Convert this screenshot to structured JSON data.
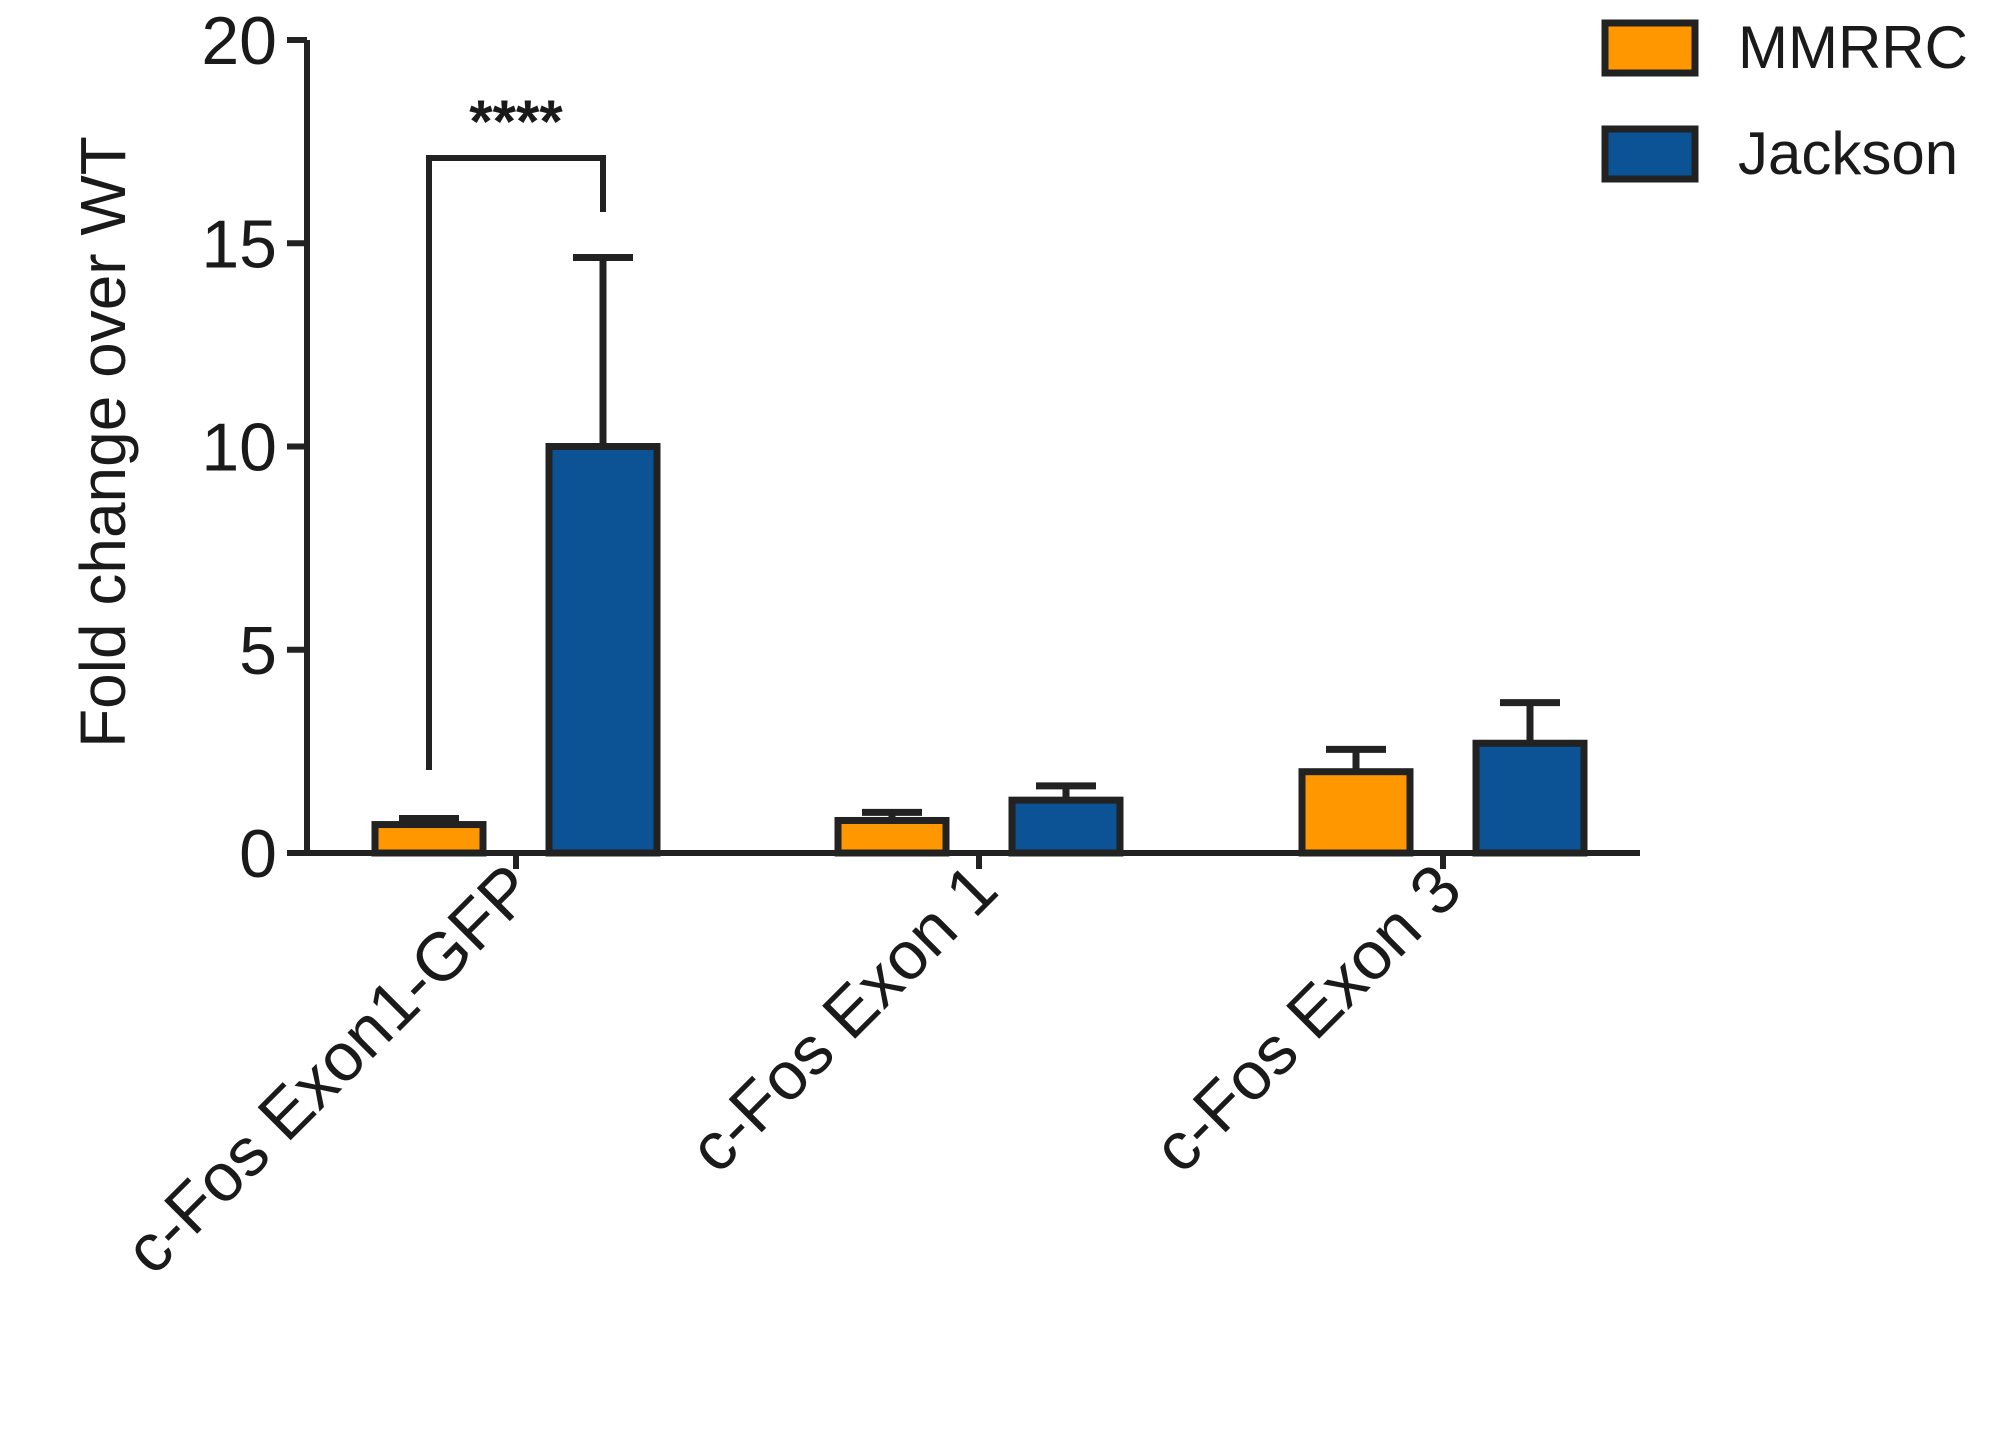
{
  "chart_data": {
    "type": "bar",
    "ylabel": "Fold change over WT",
    "ylim": [
      0,
      20
    ],
    "yticks": [
      0,
      5,
      10,
      15,
      20
    ],
    "categories": [
      "c-Fos Exon1-GFP",
      "c-Fos Exon 1",
      "c-Fos Exon 3"
    ],
    "series": [
      {
        "name": "MMRRC",
        "color": "#FF9800",
        "values": [
          0.7,
          0.8,
          2.0
        ],
        "errors": [
          0.15,
          0.2,
          0.55
        ]
      },
      {
        "name": "Jackson",
        "color": "#0B5394",
        "values": [
          10.0,
          1.3,
          2.7
        ],
        "errors": [
          4.65,
          0.35,
          1.0
        ]
      }
    ],
    "significance": [
      {
        "category": 0,
        "label": "****"
      }
    ],
    "legend": {
      "position": "top-right"
    },
    "grid": false
  }
}
